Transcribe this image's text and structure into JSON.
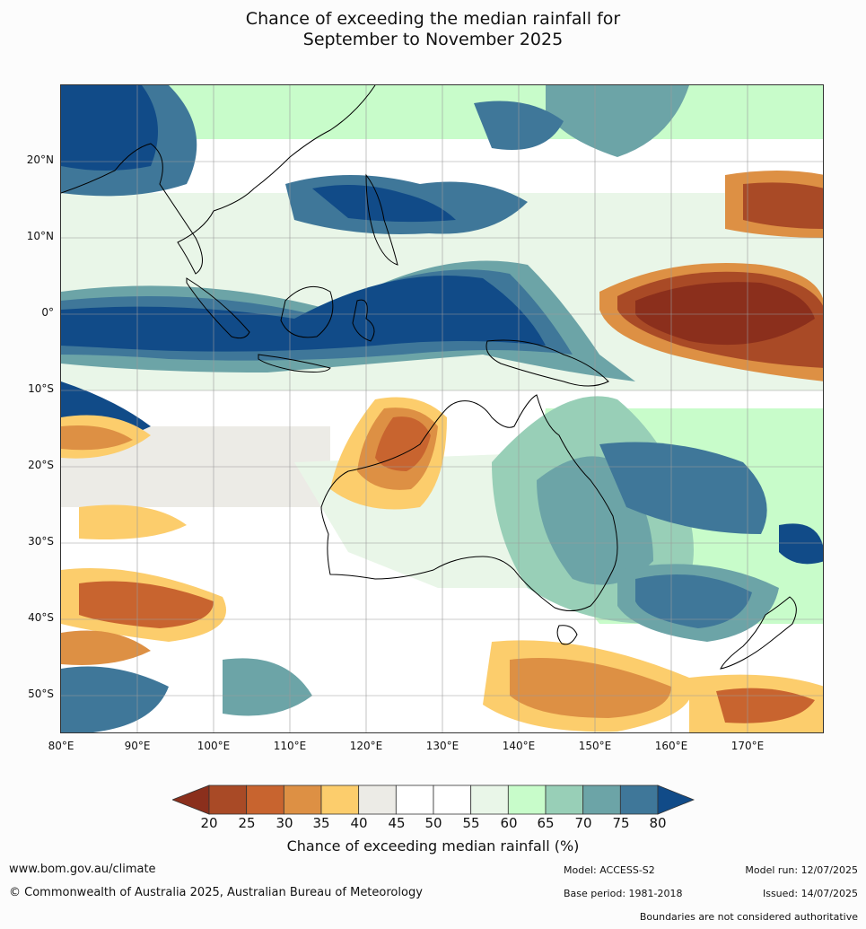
{
  "title": {
    "line1": "Chance of exceeding the median rainfall for",
    "line2": "September to November 2025"
  },
  "map": {
    "lat_labels": [
      "20°N",
      "10°N",
      "0°",
      "10°S",
      "20°S",
      "30°S",
      "40°S",
      "50°S"
    ],
    "lon_labels": [
      "80°E",
      "90°E",
      "100°E",
      "110°E",
      "120°E",
      "130°E",
      "140°E",
      "150°E",
      "160°E",
      "170°E"
    ]
  },
  "legend": {
    "ticks": [
      "20",
      "25",
      "30",
      "35",
      "40",
      "45",
      "50",
      "55",
      "60",
      "65",
      "70",
      "75",
      "80"
    ],
    "colors": [
      "#8b2f1c",
      "#a94a26",
      "#c8642f",
      "#dd9044",
      "#fccd6c",
      "#ecebe6",
      "#ffffff",
      "#ffffff",
      "#e9f6e8",
      "#c8fcca",
      "#98cfb7",
      "#6ca4a7",
      "#3f7799",
      "#114b88"
    ],
    "title": "Chance of exceeding median rainfall (%)"
  },
  "footer": {
    "website": "www.bom.gov.au/climate",
    "copyright": "© Commonwealth of Australia 2025, Australian Bureau of Meteorology",
    "model": "Model: ACCESS-S2",
    "base_period": "Base period: 1981-2018",
    "model_run": "Model run: 12/07/2025",
    "issued": "Issued: 14/07/2025",
    "disclaimer": "Boundaries are not considered authoritative"
  }
}
